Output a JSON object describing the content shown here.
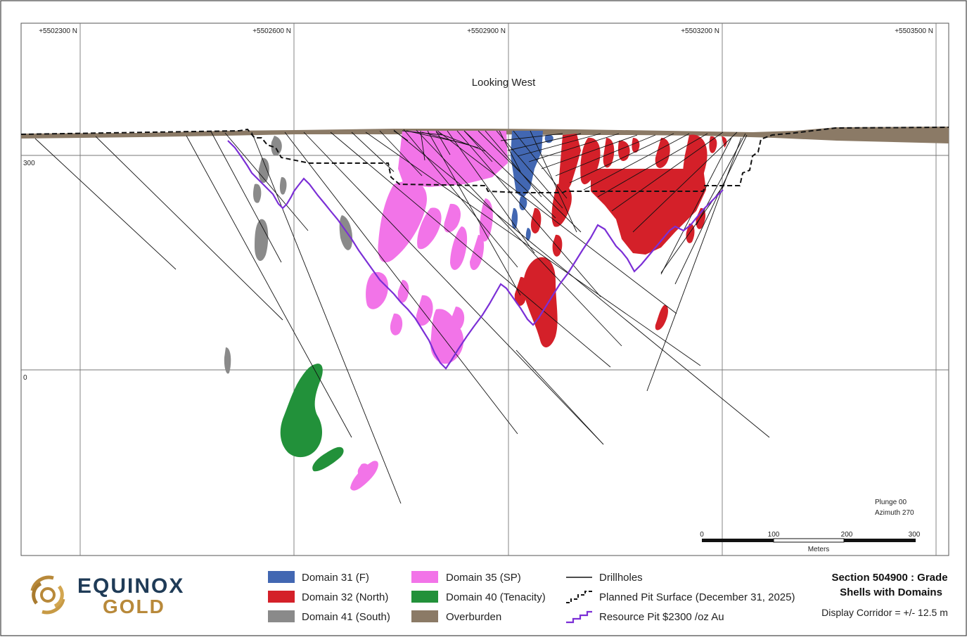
{
  "section": {
    "view_label": "Looking West",
    "plunge": "Plunge 00",
    "azimuth": "Azimuth 270",
    "northings": [
      "+5502300 N",
      "+5502600 N",
      "+5502900 N",
      "+5503200 N",
      "+5503500 N"
    ],
    "elevations": [
      "300",
      "0"
    ],
    "scale": {
      "ticks": [
        "0",
        "100",
        "200",
        "300"
      ],
      "unit": "Meters"
    }
  },
  "legend": {
    "domains": [
      {
        "label": "Domain 31 (F)",
        "color": "#4267b2"
      },
      {
        "label": "Domain 32 (North)",
        "color": "#d42029"
      },
      {
        "label": "Domain 41 (South)",
        "color": "#8a8a8a"
      },
      {
        "label": "Domain 35 (SP)",
        "color": "#f274e8"
      },
      {
        "label": "Domain 40 (Tenacity)",
        "color": "#22913a"
      },
      {
        "label": "Overburden",
        "color": "#8b7a66"
      }
    ],
    "lines": [
      {
        "label": "Drillholes",
        "color": "#000000",
        "icon": "solid-line-icon"
      },
      {
        "label": "Planned Pit Surface (December 31, 2025)",
        "color": "#000000",
        "icon": "dashed-step-line-icon"
      },
      {
        "label": "Resource Pit $2300 /oz Au",
        "color": "#7b2fd6",
        "icon": "purple-step-line-icon"
      }
    ]
  },
  "title_block": {
    "line1": "Section 504900 : Grade",
    "line2": "Shells with Domains",
    "corridor": "Display Corridor = +/- 12.5 m"
  },
  "logo": {
    "word1": "EQUINOX",
    "word2": "GOLD",
    "brand_dark": "#1f3b57",
    "brand_gold": "#b8893a"
  }
}
